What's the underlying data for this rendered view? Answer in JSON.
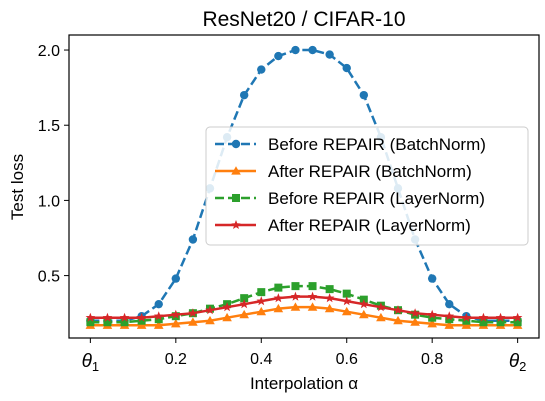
{
  "colors": {
    "blue": "#1f77b4",
    "orange": "#ff7f0e",
    "green": "#2ca02c",
    "red": "#d62728"
  },
  "chart_data": {
    "type": "line",
    "title": "ResNet20 / CIFAR-10",
    "xlabel": "Interpolation α",
    "ylabel": "Test loss",
    "xlim": [
      -0.05,
      1.05
    ],
    "ylim": [
      0.085,
      2.1
    ],
    "xticks": [
      {
        "value": 0,
        "label": "θ",
        "sub": "1"
      },
      {
        "value": 0.2,
        "label": "0.2"
      },
      {
        "value": 0.4,
        "label": "0.4"
      },
      {
        "value": 0.6,
        "label": "0.6"
      },
      {
        "value": 0.8,
        "label": "0.8"
      },
      {
        "value": 1,
        "label": "θ",
        "sub": "2"
      }
    ],
    "yticks": [
      {
        "value": 0.5,
        "label": "0.5"
      },
      {
        "value": 1.0,
        "label": "1.0"
      },
      {
        "value": 1.5,
        "label": "1.5"
      },
      {
        "value": 2.0,
        "label": "2.0"
      }
    ],
    "grid": false,
    "legend_position": "center-right",
    "x": [
      0,
      0.04,
      0.08,
      0.12,
      0.16,
      0.2,
      0.24,
      0.28,
      0.32,
      0.36,
      0.4,
      0.44,
      0.48,
      0.52,
      0.56,
      0.6,
      0.64,
      0.68,
      0.72,
      0.76,
      0.8,
      0.84,
      0.88,
      0.92,
      0.96,
      1.0
    ],
    "series": [
      {
        "name": "Before REPAIR (BatchNorm)",
        "color": "blue",
        "linestyle": "dashed",
        "marker": "circle",
        "values": [
          0.2,
          0.2,
          0.2,
          0.23,
          0.31,
          0.48,
          0.74,
          1.08,
          1.42,
          1.7,
          1.87,
          1.96,
          2.0,
          2.0,
          1.97,
          1.88,
          1.7,
          1.42,
          1.08,
          0.74,
          0.48,
          0.31,
          0.23,
          0.2,
          0.2,
          0.2
        ]
      },
      {
        "name": "After REPAIR (BatchNorm)",
        "color": "orange",
        "linestyle": "solid",
        "marker": "triangle",
        "values": [
          0.17,
          0.17,
          0.17,
          0.17,
          0.17,
          0.18,
          0.19,
          0.2,
          0.22,
          0.24,
          0.26,
          0.28,
          0.29,
          0.29,
          0.28,
          0.26,
          0.24,
          0.22,
          0.2,
          0.19,
          0.18,
          0.17,
          0.17,
          0.17,
          0.17,
          0.17
        ]
      },
      {
        "name": "Before REPAIR (LayerNorm)",
        "color": "green",
        "linestyle": "dashed",
        "marker": "square",
        "values": [
          0.19,
          0.19,
          0.19,
          0.2,
          0.21,
          0.23,
          0.25,
          0.28,
          0.31,
          0.35,
          0.39,
          0.42,
          0.43,
          0.43,
          0.41,
          0.38,
          0.34,
          0.3,
          0.27,
          0.24,
          0.22,
          0.21,
          0.2,
          0.19,
          0.19,
          0.19
        ]
      },
      {
        "name": "After REPAIR (LayerNorm)",
        "color": "red",
        "linestyle": "solid",
        "marker": "star",
        "values": [
          0.22,
          0.22,
          0.22,
          0.22,
          0.23,
          0.24,
          0.25,
          0.27,
          0.29,
          0.31,
          0.33,
          0.35,
          0.36,
          0.36,
          0.35,
          0.33,
          0.31,
          0.29,
          0.27,
          0.25,
          0.24,
          0.23,
          0.22,
          0.22,
          0.22,
          0.22
        ]
      }
    ]
  }
}
